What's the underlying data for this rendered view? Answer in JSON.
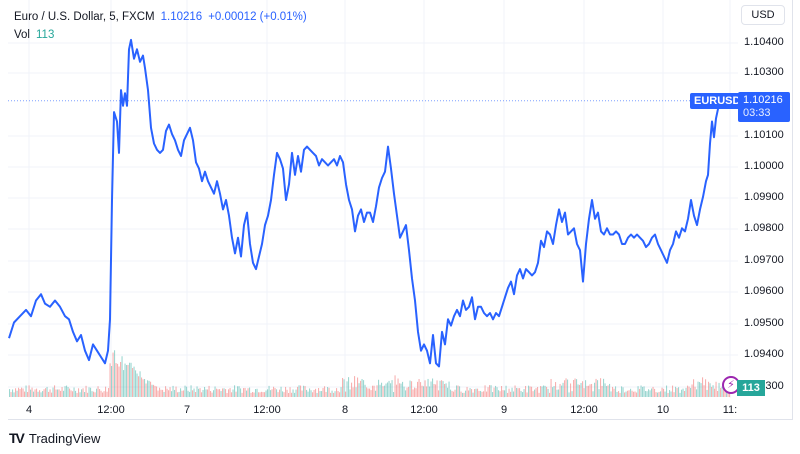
{
  "legend": {
    "symbol_line": "Euro / U.S. Dollar, 5, FXCM",
    "last_price": "1.10216",
    "change": "+0.00012 (+0.01%)",
    "vol_label": "Vol",
    "vol_value": "113"
  },
  "currency_button": "USD",
  "price_tag": {
    "symbol": "EURUSD",
    "price": "1.10216",
    "countdown": "03:33"
  },
  "volume_tag": "113",
  "event_icon": "lightning-bolt-icon",
  "footer": {
    "logo_glyph": "TV",
    "brand": "TradingView"
  },
  "colors": {
    "line": "#2962ff",
    "volume_up": "#26a69a",
    "volume_down": "#ef5350",
    "grid": "#f0f3fa",
    "price_line": "#2962ff",
    "event": "#9c27b0"
  },
  "y_axis": {
    "ticks": [
      "1.10400",
      "1.10300",
      "1.10100",
      "1.10000",
      "1.09900",
      "1.09800",
      "1.09700",
      "1.09600",
      "1.09500",
      "1.09400",
      "1.09300"
    ],
    "tick_y": [
      43,
      73,
      136,
      167,
      198,
      229,
      261,
      292,
      324,
      355,
      387
    ]
  },
  "x_axis": {
    "ticks": [
      "4",
      "12:00",
      "7",
      "12:00",
      "8",
      "12:00",
      "9",
      "12:00",
      "10",
      "11:"
    ],
    "tick_x": [
      29,
      111,
      187,
      267,
      345,
      424,
      504,
      584,
      663,
      730
    ]
  },
  "chart_data": {
    "type": "line",
    "title": "Euro / U.S. Dollar, 5, FXCM",
    "xlabel": "",
    "ylabel": "USD",
    "ylim": [
      1.0928,
      1.1047
    ],
    "grid": true,
    "legend_position": "top-left",
    "x": [
      "4",
      "12:00",
      "7",
      "12:00",
      "8",
      "12:00",
      "9",
      "12:00",
      "10",
      "11:"
    ],
    "series": [
      {
        "name": "EURUSD close",
        "points": [
          [
            9,
            1.0946
          ],
          [
            14,
            1.0951
          ],
          [
            20,
            1.0953
          ],
          [
            26,
            1.0955
          ],
          [
            31,
            1.0953
          ],
          [
            36,
            1.0958
          ],
          [
            41,
            1.096
          ],
          [
            45,
            1.0957
          ],
          [
            50,
            1.0956
          ],
          [
            55,
            1.0958
          ],
          [
            60,
            1.0956
          ],
          [
            65,
            1.0953
          ],
          [
            69,
            1.0952
          ],
          [
            73,
            1.0948
          ],
          [
            77,
            1.0945
          ],
          [
            81,
            1.0947
          ],
          [
            85,
            1.0942
          ],
          [
            89,
            1.0939
          ],
          [
            93,
            1.0944
          ],
          [
            97,
            1.0942
          ],
          [
            101,
            1.094
          ],
          [
            105,
            1.0938
          ],
          [
            108,
            1.0942
          ],
          [
            110,
            1.0952
          ],
          [
            112,
            1.099
          ],
          [
            114,
            1.1018
          ],
          [
            117,
            1.1015
          ],
          [
            119,
            1.1005
          ],
          [
            121,
            1.1025
          ],
          [
            123,
            1.102
          ],
          [
            125,
            1.1024
          ],
          [
            127,
            1.102
          ],
          [
            129,
            1.1038
          ],
          [
            131,
            1.1041
          ],
          [
            134,
            1.1035
          ],
          [
            137,
            1.1038
          ],
          [
            140,
            1.1034
          ],
          [
            143,
            1.1036
          ],
          [
            145,
            1.1032
          ],
          [
            148,
            1.1025
          ],
          [
            151,
            1.1013
          ],
          [
            154,
            1.1008
          ],
          [
            157,
            1.1006
          ],
          [
            160,
            1.1005
          ],
          [
            163,
            1.1006
          ],
          [
            166,
            1.1012
          ],
          [
            169,
            1.1014
          ],
          [
            172,
            1.1011
          ],
          [
            175,
            1.1009
          ],
          [
            178,
            1.1006
          ],
          [
            181,
            1.1004
          ],
          [
            184,
            1.1009
          ],
          [
            187,
            1.1011
          ],
          [
            190,
            1.1013
          ],
          [
            193,
            1.1009
          ],
          [
            196,
            1.1002
          ],
          [
            199,
            1.1
          ],
          [
            202,
            1.0996
          ],
          [
            205,
            1.0999
          ],
          [
            208,
            1.0996
          ],
          [
            211,
            1.0994
          ],
          [
            214,
            1.0992
          ],
          [
            217,
            1.0996
          ],
          [
            220,
            1.0992
          ],
          [
            223,
            1.0987
          ],
          [
            226,
            1.099
          ],
          [
            229,
            1.0985
          ],
          [
            232,
            1.0978
          ],
          [
            235,
            1.0973
          ],
          [
            238,
            1.0978
          ],
          [
            241,
            1.0972
          ],
          [
            244,
            1.0982
          ],
          [
            247,
            1.0986
          ],
          [
            250,
            1.0976
          ],
          [
            253,
            1.097
          ],
          [
            256,
            1.0968
          ],
          [
            259,
            1.0972
          ],
          [
            262,
            1.0976
          ],
          [
            265,
            1.0982
          ],
          [
            268,
            1.0985
          ],
          [
            271,
            1.099
          ],
          [
            274,
            1.0998
          ],
          [
            277,
            1.1005
          ],
          [
            280,
            1.1003
          ],
          [
            283,
            1.1
          ],
          [
            286,
            1.099
          ],
          [
            289,
            1.0995
          ],
          [
            292,
            1.1005
          ],
          [
            295,
            1.0998
          ],
          [
            298,
            1.1004
          ],
          [
            301,
            1.0999
          ],
          [
            304,
            1.1006
          ],
          [
            307,
            1.1007
          ],
          [
            310,
            1.1006
          ],
          [
            313,
            1.1005
          ],
          [
            316,
            1.1004
          ],
          [
            319,
            1.1001
          ],
          [
            322,
            1.1003
          ],
          [
            325,
            1.1002
          ],
          [
            328,
            1.1001
          ],
          [
            331,
            1.1002
          ],
          [
            334,
            1.1003
          ],
          [
            337,
            1.1001
          ],
          [
            340,
            1.1004
          ],
          [
            343,
            1.1002
          ],
          [
            346,
            1.0995
          ],
          [
            349,
            1.099
          ],
          [
            352,
            1.0987
          ],
          [
            355,
            1.098
          ],
          [
            358,
            1.0985
          ],
          [
            361,
            1.0987
          ],
          [
            364,
            1.0983
          ],
          [
            367,
            1.0986
          ],
          [
            370,
            1.0986
          ],
          [
            373,
            1.0983
          ],
          [
            376,
            1.0988
          ],
          [
            379,
            1.0994
          ],
          [
            382,
            1.0997
          ],
          [
            385,
            1.0999
          ],
          [
            388,
            1.1007
          ],
          [
            391,
            1.1
          ],
          [
            394,
            1.0992
          ],
          [
            397,
            1.0985
          ],
          [
            400,
            1.0978
          ],
          [
            403,
            1.098
          ],
          [
            406,
            1.0982
          ],
          [
            409,
            1.0974
          ],
          [
            412,
            1.0965
          ],
          [
            415,
            1.0958
          ],
          [
            418,
            1.0948
          ],
          [
            421,
            1.0942
          ],
          [
            424,
            1.0944
          ],
          [
            427,
            1.0942
          ],
          [
            430,
            1.0938
          ],
          [
            433,
            1.0947
          ],
          [
            436,
            1.0938
          ],
          [
            439,
            1.0937
          ],
          [
            442,
            1.0948
          ],
          [
            445,
            1.0944
          ],
          [
            448,
            1.0952
          ],
          [
            451,
            1.095
          ],
          [
            454,
            1.0953
          ],
          [
            457,
            1.0955
          ],
          [
            460,
            1.0953
          ],
          [
            463,
            1.0958
          ],
          [
            466,
            1.0955
          ],
          [
            469,
            1.0956
          ],
          [
            472,
            1.0959
          ],
          [
            475,
            1.0952
          ],
          [
            478,
            1.0956
          ],
          [
            481,
            1.0956
          ],
          [
            484,
            1.0954
          ],
          [
            487,
            1.0953
          ],
          [
            490,
            1.0954
          ],
          [
            493,
            1.0952
          ],
          [
            496,
            1.0954
          ],
          [
            499,
            1.0953
          ],
          [
            502,
            1.0956
          ],
          [
            505,
            1.0959
          ],
          [
            508,
            1.0962
          ],
          [
            511,
            1.0964
          ],
          [
            514,
            1.096
          ],
          [
            517,
            1.0966
          ],
          [
            520,
            1.0968
          ],
          [
            523,
            1.0965
          ],
          [
            526,
            1.0968
          ],
          [
            529,
            1.0967
          ],
          [
            532,
            1.0966
          ],
          [
            535,
            1.0967
          ],
          [
            538,
            1.097
          ],
          [
            541,
            1.0977
          ],
          [
            544,
            1.0975
          ],
          [
            547,
            1.098
          ],
          [
            550,
            1.0979
          ],
          [
            553,
            1.0976
          ],
          [
            556,
            1.0982
          ],
          [
            559,
            1.0987
          ],
          [
            562,
            1.0983
          ],
          [
            565,
            1.0986
          ],
          [
            568,
            1.0979
          ],
          [
            571,
            1.098
          ],
          [
            574,
            1.0981
          ],
          [
            577,
            1.0976
          ],
          [
            580,
            1.0974
          ],
          [
            583,
            1.0964
          ],
          [
            586,
            1.0976
          ],
          [
            589,
            1.0984
          ],
          [
            592,
            1.099
          ],
          [
            595,
            1.0984
          ],
          [
            598,
            1.0986
          ],
          [
            601,
            1.098
          ],
          [
            604,
            1.0979
          ],
          [
            607,
            1.0981
          ],
          [
            610,
            1.0979
          ],
          [
            613,
            1.0979
          ],
          [
            616,
            1.098
          ],
          [
            619,
            1.0979
          ],
          [
            622,
            1.0976
          ],
          [
            625,
            1.0976
          ],
          [
            628,
            1.0978
          ],
          [
            631,
            1.0979
          ],
          [
            634,
            1.0978
          ],
          [
            637,
            1.0979
          ],
          [
            640,
            1.0978
          ],
          [
            643,
            1.0977
          ],
          [
            646,
            1.0975
          ],
          [
            649,
            1.0976
          ],
          [
            652,
            1.0978
          ],
          [
            655,
            1.0979
          ],
          [
            658,
            1.0976
          ],
          [
            661,
            1.0974
          ],
          [
            664,
            1.0972
          ],
          [
            667,
            1.097
          ],
          [
            670,
            1.0974
          ],
          [
            673,
            1.0976
          ],
          [
            676,
            1.098
          ],
          [
            679,
            1.0978
          ],
          [
            682,
            1.0981
          ],
          [
            685,
            1.098
          ],
          [
            688,
            1.0984
          ],
          [
            691,
            1.099
          ],
          [
            694,
            1.0985
          ],
          [
            697,
            1.0982
          ],
          [
            700,
            1.0987
          ],
          [
            703,
            1.0991
          ],
          [
            706,
            1.0996
          ],
          [
            708,
            1.0998
          ],
          [
            710,
            1.1008
          ],
          [
            712,
            1.1015
          ],
          [
            714,
            1.101
          ],
          [
            716,
            1.1016
          ],
          [
            718,
            1.1019
          ],
          [
            720,
            1.1021
          ],
          [
            723,
            1.102
          ],
          [
            726,
            1.1022
          ],
          [
            729,
            1.10216
          ]
        ]
      }
    ],
    "volume_series": {
      "name": "Vol",
      "last": 113,
      "note": "small red/green volume histogram along bottom, spike near 12:00 on day 4"
    },
    "current_price": 1.10216,
    "change": 0.00012,
    "change_pct": "+0.01%"
  }
}
